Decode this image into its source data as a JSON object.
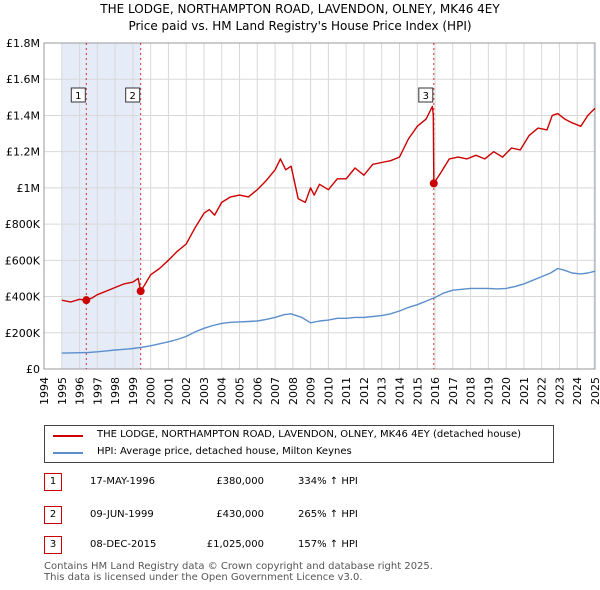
{
  "title_line1": "THE LODGE, NORTHAMPTON ROAD, LAVENDON, OLNEY, MK46 4EY",
  "title_line2": "Price paid vs. HM Land Registry's House Price Index (HPI)",
  "colors": {
    "property": "#cc0000",
    "hpi": "#5b8fcc",
    "shade": "#dce6f5",
    "marker_border": "#cc0000"
  },
  "legend": {
    "property": "THE LODGE, NORTHAMPTON ROAD, LAVENDON, OLNEY, MK46 4EY (detached house)",
    "hpi": "HPI: Average price, detached house, Milton Keynes"
  },
  "sales": [
    {
      "num": "1",
      "date": "17-MAY-1996",
      "price": "£380,000",
      "hpi": "334% ↑ HPI"
    },
    {
      "num": "2",
      "date": "09-JUN-1999",
      "price": "£430,000",
      "hpi": "265% ↑ HPI"
    },
    {
      "num": "3",
      "date": "08-DEC-2015",
      "price": "£1,025,000",
      "hpi": "157% ↑ HPI"
    }
  ],
  "footer_line1": "Contains HM Land Registry data © Crown copyright and database right 2025.",
  "footer_line2": "This data is licensed under the Open Government Licence v3.0.",
  "chart_data": {
    "type": "line",
    "title": "THE LODGE, NORTHAMPTON ROAD, LAVENDON, OLNEY, MK46 4EY",
    "subtitle": "Price paid vs. HM Land Registry's House Price Index (HPI)",
    "xlim": [
      1994,
      2025
    ],
    "ylim": [
      0,
      1800000
    ],
    "x_ticks": [
      1994,
      1995,
      1996,
      1997,
      1998,
      1999,
      2000,
      2001,
      2002,
      2003,
      2004,
      2005,
      2006,
      2007,
      2008,
      2009,
      2010,
      2011,
      2012,
      2013,
      2014,
      2015,
      2016,
      2017,
      2018,
      2019,
      2020,
      2021,
      2022,
      2023,
      2024,
      2025
    ],
    "y_ticks": [
      0,
      200000,
      400000,
      600000,
      800000,
      1000000,
      1200000,
      1400000,
      1600000,
      1800000
    ],
    "y_tick_labels": [
      "£0",
      "£200K",
      "£400K",
      "£600K",
      "£800K",
      "£1M",
      "£1.2M",
      "£1.4M",
      "£1.6M",
      "£1.8M"
    ],
    "grid": true,
    "shaded_periods": [
      [
        1995.0,
        1996.38
      ],
      [
        1996.38,
        1999.44
      ],
      [
        2024.9,
        2025.0
      ]
    ],
    "series": [
      {
        "name": "THE LODGE, NORTHAMPTON ROAD, LAVENDON, OLNEY, MK46 4EY (detached house)",
        "x": [
          1995.0,
          1995.5,
          1996.0,
          1996.38,
          1996.7,
          1997.0,
          1997.5,
          1998.0,
          1998.5,
          1999.0,
          1999.3,
          1999.44,
          1999.7,
          2000.0,
          2000.5,
          2001.0,
          2001.5,
          2002.0,
          2002.5,
          2003.0,
          2003.3,
          2003.6,
          2004.0,
          2004.5,
          2005.0,
          2005.5,
          2006.0,
          2006.5,
          2007.0,
          2007.3,
          2007.6,
          2007.9,
          2008.3,
          2008.7,
          2009.0,
          2009.2,
          2009.5,
          2010.0,
          2010.5,
          2011.0,
          2011.5,
          2012.0,
          2012.5,
          2013.0,
          2013.5,
          2014.0,
          2014.5,
          2015.0,
          2015.5,
          2015.85,
          2015.9,
          2015.93,
          2016.3,
          2016.8,
          2017.3,
          2017.8,
          2018.3,
          2018.8,
          2019.3,
          2019.8,
          2020.3,
          2020.8,
          2021.3,
          2021.8,
          2022.3,
          2022.6,
          2022.9,
          2023.3,
          2023.7,
          2024.2,
          2024.6,
          2025.0
        ],
        "values": [
          380000,
          370000,
          385000,
          380000,
          392000,
          410000,
          430000,
          450000,
          470000,
          480000,
          500000,
          430000,
          470000,
          520000,
          555000,
          600000,
          650000,
          690000,
          780000,
          860000,
          880000,
          850000,
          920000,
          950000,
          960000,
          950000,
          990000,
          1040000,
          1100000,
          1160000,
          1100000,
          1120000,
          940000,
          920000,
          1000000,
          960000,
          1020000,
          990000,
          1050000,
          1050000,
          1110000,
          1070000,
          1130000,
          1140000,
          1150000,
          1170000,
          1270000,
          1340000,
          1380000,
          1450000,
          1400000,
          1025000,
          1080000,
          1160000,
          1170000,
          1160000,
          1180000,
          1160000,
          1200000,
          1170000,
          1220000,
          1210000,
          1290000,
          1330000,
          1320000,
          1400000,
          1410000,
          1380000,
          1360000,
          1340000,
          1400000,
          1440000
        ]
      },
      {
        "name": "HPI: Average price, detached house, Milton Keynes",
        "x": [
          1995.0,
          1995.5,
          1996.0,
          1996.5,
          1997.0,
          1997.5,
          1998.0,
          1998.5,
          1999.0,
          1999.5,
          2000.0,
          2000.5,
          2001.0,
          2001.5,
          2002.0,
          2002.5,
          2003.0,
          2003.5,
          2004.0,
          2004.5,
          2005.0,
          2005.5,
          2006.0,
          2006.5,
          2007.0,
          2007.5,
          2007.9,
          2008.5,
          2009.0,
          2009.5,
          2010.0,
          2010.5,
          2011.0,
          2011.5,
          2012.0,
          2012.5,
          2013.0,
          2013.5,
          2014.0,
          2014.5,
          2015.0,
          2015.5,
          2016.0,
          2016.5,
          2017.0,
          2017.5,
          2018.0,
          2018.5,
          2019.0,
          2019.5,
          2020.0,
          2020.5,
          2021.0,
          2021.5,
          2022.0,
          2022.5,
          2022.9,
          2023.3,
          2023.7,
          2024.2,
          2024.6,
          2025.0
        ],
        "values": [
          88000,
          89000,
          90000,
          91000,
          95000,
          100000,
          105000,
          109000,
          113000,
          120000,
          128000,
          139000,
          150000,
          163000,
          180000,
          205000,
          225000,
          240000,
          252000,
          258000,
          260000,
          262000,
          265000,
          274000,
          285000,
          300000,
          305000,
          285000,
          255000,
          265000,
          270000,
          280000,
          280000,
          285000,
          285000,
          290000,
          295000,
          305000,
          320000,
          340000,
          355000,
          375000,
          395000,
          420000,
          435000,
          440000,
          445000,
          445000,
          445000,
          442000,
          445000,
          455000,
          470000,
          490000,
          510000,
          530000,
          555000,
          545000,
          530000,
          525000,
          530000,
          540000
        ]
      }
    ],
    "annotations": [
      {
        "label": "1",
        "x": 1996.38,
        "value": 380000
      },
      {
        "label": "2",
        "x": 1999.44,
        "value": 430000
      },
      {
        "label": "3",
        "x": 2015.93,
        "value": 1025000
      }
    ]
  }
}
